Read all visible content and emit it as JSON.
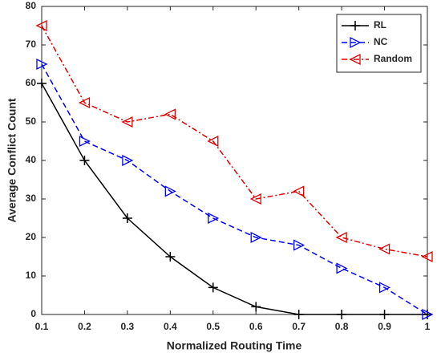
{
  "chart_data": {
    "type": "line",
    "xlabel": "Normalized Routing Time",
    "ylabel": "Average Conflict Count",
    "x": [
      0.1,
      0.2,
      0.3,
      0.4,
      0.5,
      0.6,
      0.7,
      0.8,
      0.9,
      1
    ],
    "series": [
      {
        "name": "RL",
        "color": "#000000",
        "dash": "solid",
        "marker": "plus",
        "values": [
          60,
          40,
          25,
          15,
          7,
          2,
          0,
          0,
          0,
          0
        ]
      },
      {
        "name": "NC",
        "color": "#0000ff",
        "dash": "dashed",
        "marker": "triangle-right",
        "values": [
          65,
          45,
          40,
          32,
          25,
          20,
          18,
          12,
          7,
          0
        ]
      },
      {
        "name": "Random",
        "color": "#e00000",
        "dash": "dashdot",
        "marker": "triangle-left",
        "values": [
          75,
          55,
          50,
          52,
          45,
          30,
          32,
          20,
          17,
          15
        ]
      }
    ],
    "xlim": [
      0.1,
      1
    ],
    "xticks": [
      0.1,
      0.2,
      0.3,
      0.4,
      0.5,
      0.6,
      0.7,
      0.8,
      0.9,
      1
    ],
    "ylim": [
      0,
      80
    ],
    "yticks": [
      0,
      10,
      20,
      30,
      40,
      50,
      60,
      70,
      80
    ],
    "grid": false,
    "legend": "northeast"
  }
}
